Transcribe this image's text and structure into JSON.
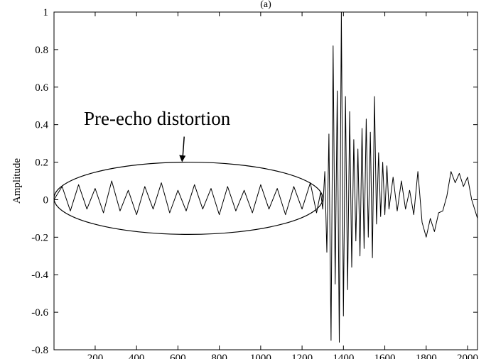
{
  "chart_data": {
    "type": "line",
    "panel_label": "(a)",
    "title": "",
    "xlabel": "",
    "ylabel": "Amplitude",
    "xlim": [
      1,
      2048
    ],
    "ylim": [
      -0.8,
      1
    ],
    "grid": false,
    "x_ticks": [
      200,
      400,
      600,
      800,
      1000,
      1200,
      1400,
      1600,
      1800,
      2000
    ],
    "x_tick_labels": [
      "200",
      "400",
      "600",
      "800",
      "1000",
      "1200",
      "1400",
      "1600",
      "1800",
      "2000"
    ],
    "y_ticks": [
      -0.8,
      -0.6,
      -0.4,
      -0.2,
      0,
      0.2,
      0.4,
      0.6,
      0.8,
      1
    ],
    "y_tick_labels": [
      "-0.8",
      "-0.6",
      "-0.4",
      "-0.2",
      "0",
      "0.2",
      "0.4",
      "0.6",
      "0.8",
      "1"
    ],
    "annotation": {
      "text": "Pre-echo distortion",
      "ellipse_x_range": [
        1,
        1300
      ],
      "ellipse_y_range": [
        -0.185,
        0.2
      ],
      "arrow_target": [
        620,
        0.2
      ]
    },
    "series": [
      {
        "x": [
          1,
          40,
          80,
          120,
          160,
          200,
          240,
          280,
          320,
          360,
          400,
          440,
          480,
          520,
          560,
          600,
          640,
          680,
          720,
          760,
          800,
          840,
          880,
          920,
          960,
          1000,
          1040,
          1080,
          1120,
          1160,
          1200,
          1240,
          1270,
          1290,
          1300,
          1310,
          1320,
          1330,
          1340,
          1350,
          1360,
          1370,
          1380,
          1390,
          1400,
          1410,
          1420,
          1430,
          1440,
          1450,
          1460,
          1470,
          1480,
          1490,
          1500,
          1510,
          1520,
          1530,
          1540,
          1550,
          1560,
          1570,
          1580,
          1590,
          1600,
          1610,
          1620,
          1640,
          1660,
          1680,
          1700,
          1720,
          1740,
          1760,
          1780,
          1800,
          1820,
          1840,
          1860,
          1880,
          1900,
          1920,
          1940,
          1960,
          1980,
          2000,
          2020,
          2048
        ],
        "values": [
          0.0,
          0.07,
          -0.06,
          0.08,
          -0.05,
          0.06,
          -0.07,
          0.1,
          -0.06,
          0.05,
          -0.08,
          0.07,
          -0.05,
          0.09,
          -0.07,
          0.05,
          -0.06,
          0.08,
          -0.05,
          0.06,
          -0.08,
          0.07,
          -0.06,
          0.05,
          -0.07,
          0.08,
          -0.05,
          0.06,
          -0.08,
          0.07,
          -0.05,
          0.09,
          -0.07,
          0.04,
          -0.05,
          0.15,
          -0.28,
          0.35,
          -0.75,
          0.82,
          -0.45,
          0.58,
          -0.76,
          1.0,
          -0.62,
          0.55,
          -0.48,
          0.47,
          -0.36,
          0.32,
          -0.22,
          0.27,
          -0.3,
          0.38,
          -0.26,
          0.43,
          -0.2,
          0.36,
          -0.31,
          0.55,
          -0.13,
          0.25,
          -0.09,
          0.2,
          -0.08,
          0.18,
          -0.05,
          0.12,
          -0.06,
          0.1,
          -0.05,
          0.05,
          -0.08,
          0.15,
          -0.12,
          -0.2,
          -0.1,
          -0.17,
          -0.07,
          -0.06,
          0.02,
          0.15,
          0.09,
          0.14,
          0.07,
          0.12,
          0.0,
          -0.1
        ]
      }
    ]
  }
}
